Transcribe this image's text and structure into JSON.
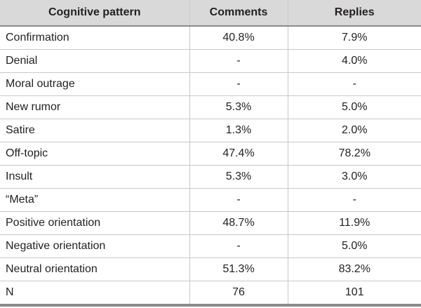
{
  "table": {
    "header": [
      "Cognitive pattern",
      "Comments",
      "Replies"
    ],
    "rows": [
      [
        "Confirmation",
        "40.8%",
        "7.9%"
      ],
      [
        "Denial",
        "-",
        "4.0%"
      ],
      [
        "Moral outrage",
        "-",
        "-"
      ],
      [
        "New rumor",
        "5.3%",
        "5.0%"
      ],
      [
        "Satire",
        "1.3%",
        "2.0%"
      ],
      [
        "Off-topic",
        "47.4%",
        "78.2%"
      ],
      [
        "Insult",
        "5.3%",
        "3.0%"
      ],
      [
        "“Meta”",
        "-",
        "-"
      ],
      [
        "Positive orientation",
        "48.7%",
        "11.9%"
      ],
      [
        "Negative orientation",
        "-",
        "5.0%"
      ],
      [
        "Neutral orientation",
        "51.3%",
        "83.2%"
      ],
      [
        "N",
        "76",
        "101"
      ]
    ]
  }
}
